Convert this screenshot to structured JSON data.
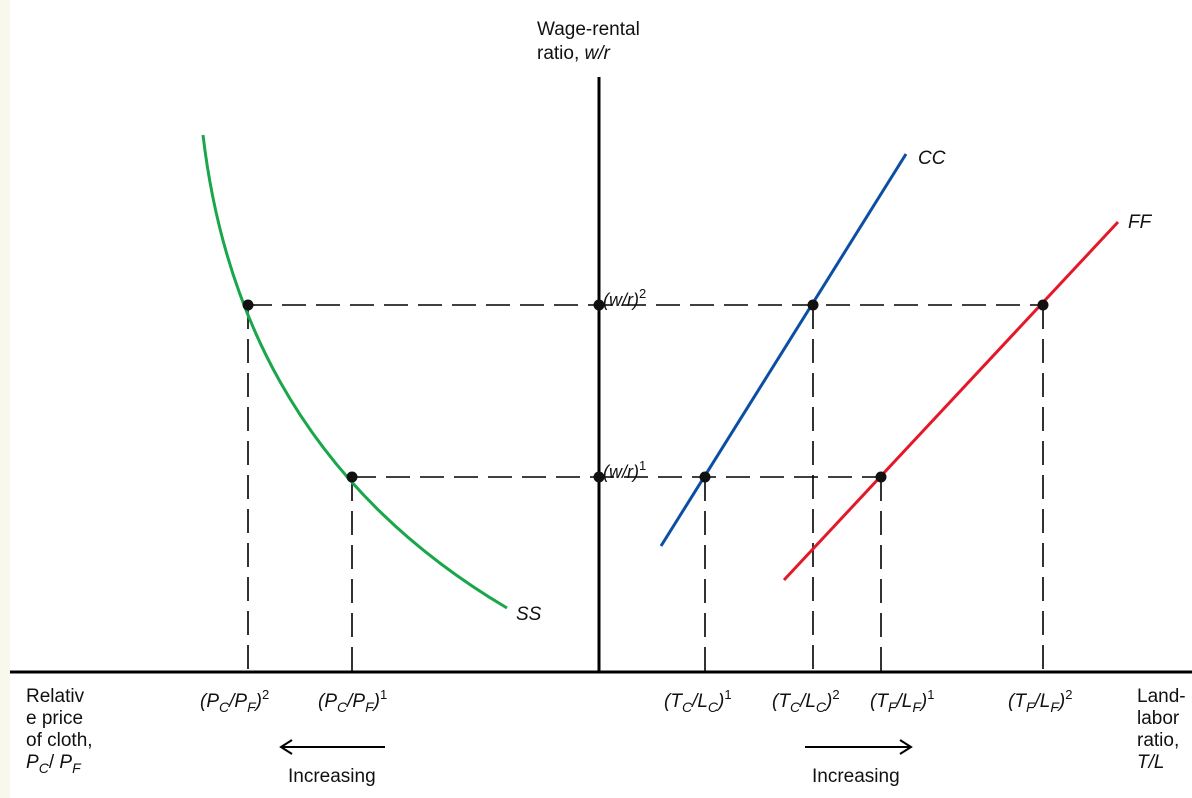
{
  "colors": {
    "ss": "#1aa64b",
    "cc": "#0b4fa3",
    "ff": "#e3192a",
    "axis": "#000000",
    "page_margin": "#f8f8ec"
  },
  "y_axis": {
    "label_line1": "Wage-rental",
    "label_line2_prefix": "ratio, ",
    "label_line2_italic": "w/r"
  },
  "curves": {
    "ss": "SS",
    "cc": "CC",
    "ff": "FF"
  },
  "levels": {
    "wr2": {
      "base": "(w/r)",
      "sup": "2"
    },
    "wr1": {
      "base": "(w/r)",
      "sup": "1"
    }
  },
  "left_axis": {
    "label_lines": [
      "Relativ",
      "e price",
      "of cloth,"
    ],
    "label_last": {
      "a": "P",
      "a_sub": "C",
      "sep": "/ ",
      "b": "P",
      "b_sub": "F"
    },
    "tick1": {
      "open": "(P",
      "sub1": "C",
      "mid": "/P",
      "sub2": "F",
      "close": ")",
      "sup": "2"
    },
    "tick2": {
      "open": "(P",
      "sub1": "C",
      "mid": "/P",
      "sub2": "F",
      "close": ")",
      "sup": "1"
    },
    "arrow_label": "Increasing"
  },
  "right_axis": {
    "label_lines": [
      "Land-",
      "labor",
      "ratio,",
      "T/L"
    ],
    "ticks": [
      {
        "open": "(T",
        "sub1": "C",
        "mid": "/L",
        "sub2": "C",
        "close": ")",
        "sup": "1"
      },
      {
        "open": "(T",
        "sub1": "C",
        "mid": "/L",
        "sub2": "C",
        "close": ")",
        "sup": "2"
      },
      {
        "open": "(T",
        "sub1": "F",
        "mid": "/L",
        "sub2": "F",
        "close": ")",
        "sup": "1"
      },
      {
        "open": "(T",
        "sub1": "F",
        "mid": "/L",
        "sub2": "F",
        "close": ")",
        "sup": "2"
      }
    ],
    "arrow_label": "Increasing"
  }
}
